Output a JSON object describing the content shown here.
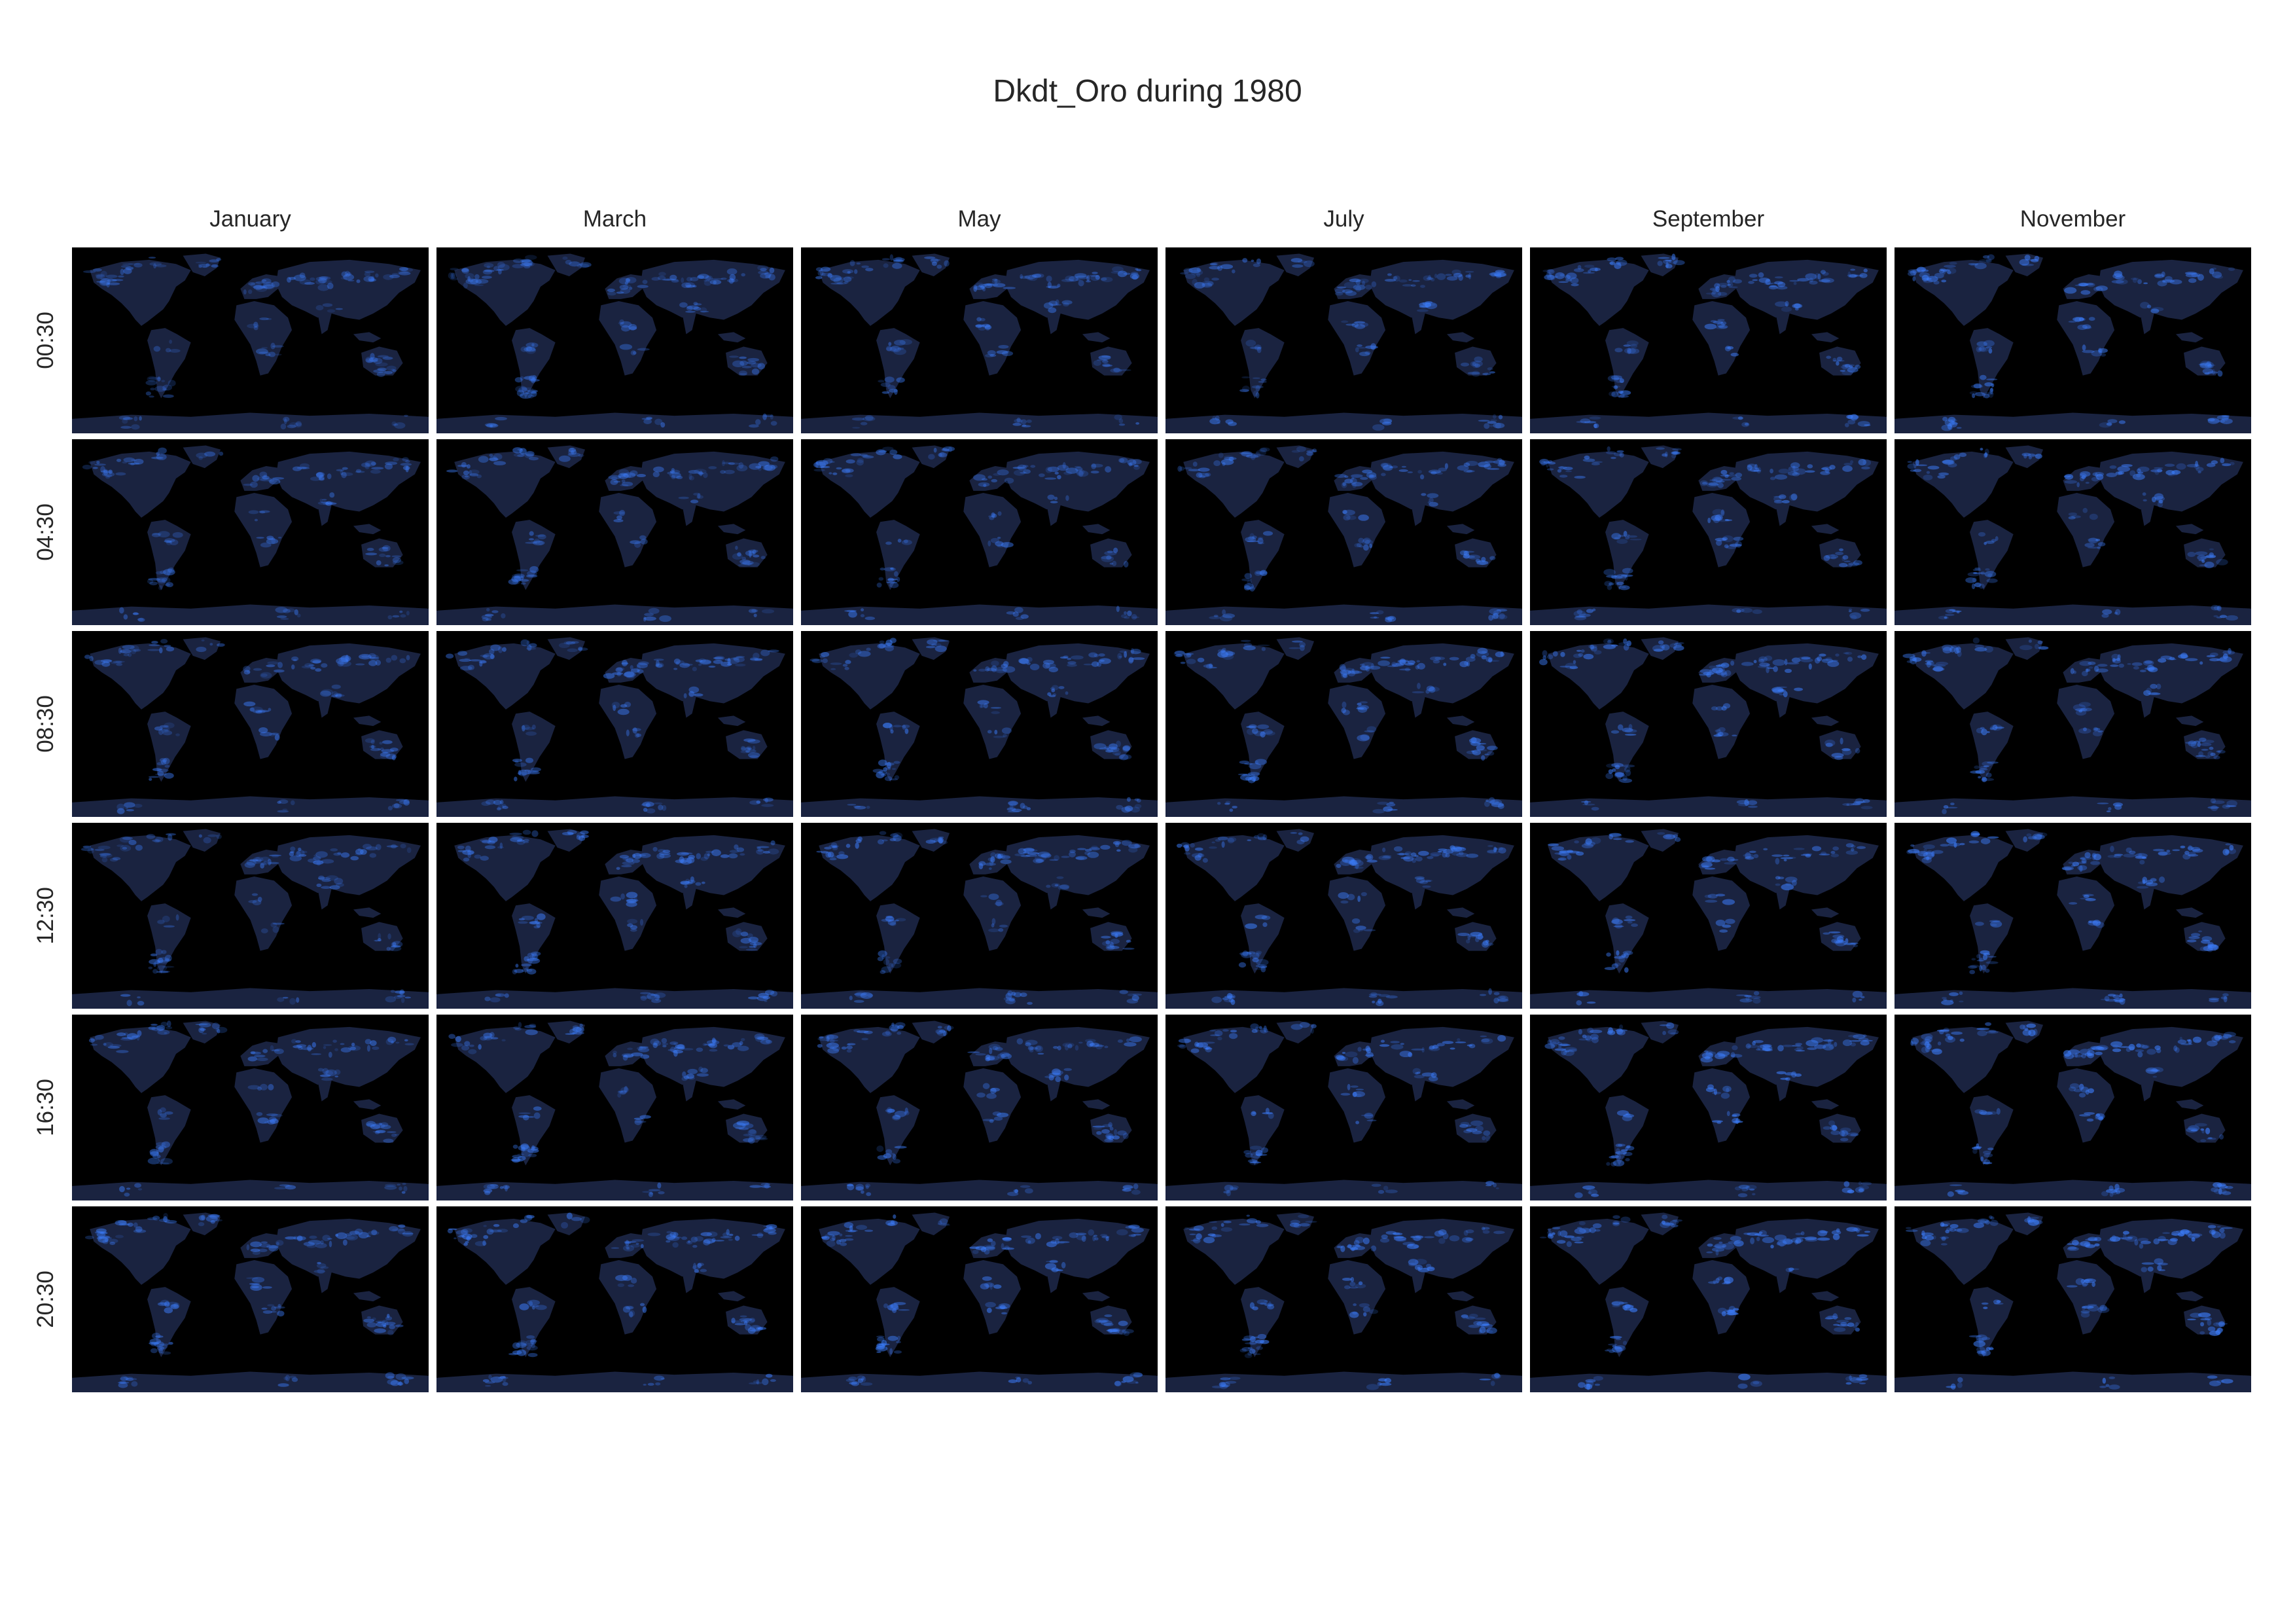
{
  "title": "Dkdt_Oro during 1980",
  "columns": [
    "January",
    "March",
    "May",
    "July",
    "September",
    "November"
  ],
  "rows": [
    "00:30",
    "04:30",
    "08:30",
    "12:30",
    "16:30",
    "20:30"
  ],
  "colors": {
    "background": "#000000",
    "land_base": "#1a2340",
    "bright": "#3d7fff",
    "page": "#ffffff"
  },
  "chart_data": {
    "type": "heatmap",
    "title": "Dkdt_Oro during 1980",
    "layout": "6x6 grid of global maps (rows: time of day, columns: month)",
    "columns": [
      "January",
      "March",
      "May",
      "July",
      "September",
      "November"
    ],
    "rows": [
      "00:30",
      "04:30",
      "08:30",
      "12:30",
      "16:30",
      "20:30"
    ],
    "colormap": "black-to-blue",
    "grid": false
  }
}
